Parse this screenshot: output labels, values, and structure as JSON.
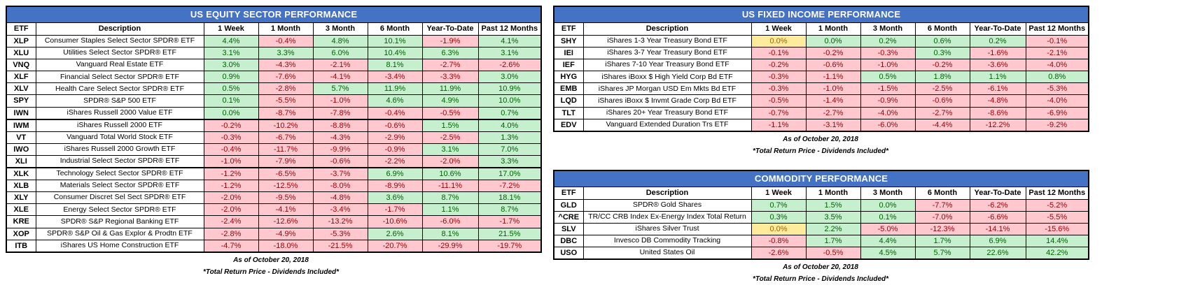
{
  "footnotes": {
    "as_of": "As of October 20, 2018",
    "note": "*Total Return Price - Dividends Included*"
  },
  "colors": {
    "header_bg": "#4472C4",
    "header_text": "#FFFFFF",
    "positive_bg": "#C6EFCE",
    "positive_text": "#006100",
    "negative_bg": "#FFC7CE",
    "negative_text": "#9C0006",
    "zero_bg": "#FFEB9C",
    "zero_text": "#9C6500"
  },
  "chart_data": [
    {
      "type": "table",
      "id": "equity",
      "title": "US EQUITY SECTOR PERFORMANCE",
      "columns": [
        "ETF",
        "Description",
        "1 Week",
        "1 Month",
        "3 Month",
        "6 Month",
        "Year-To-Date",
        "Past 12 Months"
      ],
      "rows": [
        {
          "etf": "XLP",
          "description": "Consumer Staples Select Sector SPDR® ETF",
          "values": [
            "4.4%",
            "-0.4%",
            "4.8%",
            "10.1%",
            "-1.9%",
            "4.1%"
          ],
          "tones": [
            "pos",
            "neg",
            "pos",
            "pos",
            "neg",
            "pos"
          ]
        },
        {
          "etf": "XLU",
          "description": "Utilities Select Sector SPDR® ETF",
          "values": [
            "3.1%",
            "3.3%",
            "6.0%",
            "10.4%",
            "6.3%",
            "3.1%"
          ],
          "tones": [
            "pos",
            "pos",
            "pos",
            "pos",
            "pos",
            "pos"
          ]
        },
        {
          "etf": "VNQ",
          "description": "Vanguard Real Estate ETF",
          "values": [
            "3.0%",
            "-4.3%",
            "-2.1%",
            "8.1%",
            "-2.7%",
            "-2.6%"
          ],
          "tones": [
            "pos",
            "neg",
            "neg",
            "pos",
            "neg",
            "neg"
          ]
        },
        {
          "etf": "XLF",
          "description": "Financial Select Sector SPDR® ETF",
          "values": [
            "0.9%",
            "-7.6%",
            "-4.1%",
            "-3.4%",
            "-3.3%",
            "3.0%"
          ],
          "tones": [
            "pos",
            "neg",
            "neg",
            "neg",
            "neg",
            "pos"
          ]
        },
        {
          "etf": "XLV",
          "description": "Health Care Select Sector SPDR® ETF",
          "values": [
            "0.5%",
            "-2.8%",
            "5.7%",
            "11.9%",
            "11.9%",
            "10.9%"
          ],
          "tones": [
            "pos",
            "neg",
            "pos",
            "pos",
            "pos",
            "pos"
          ]
        },
        {
          "etf": "SPY",
          "description": "SPDR® S&P 500 ETF",
          "values": [
            "0.1%",
            "-5.5%",
            "-1.0%",
            "4.6%",
            "4.9%",
            "10.0%"
          ],
          "tones": [
            "pos",
            "neg",
            "neg",
            "pos",
            "pos",
            "pos"
          ]
        },
        {
          "etf": "IWN",
          "description": "iShares Russell 2000 Value ETF",
          "values": [
            "0.0%",
            "-8.7%",
            "-7.8%",
            "-0.4%",
            "-0.5%",
            "0.7%"
          ],
          "tones": [
            "pos",
            "neg",
            "neg",
            "neg",
            "neg",
            "pos"
          ]
        },
        {
          "etf": "IWM",
          "description": "iShares Russell 2000 ETF",
          "values": [
            "-0.2%",
            "-10.2%",
            "-8.8%",
            "-0.6%",
            "1.5%",
            "4.0%"
          ],
          "tones": [
            "neg",
            "neg",
            "neg",
            "neg",
            "pos",
            "pos"
          ]
        },
        {
          "etf": "VT",
          "description": "Vanguard Total World Stock ETF",
          "values": [
            "-0.3%",
            "-6.7%",
            "-4.3%",
            "-2.9%",
            "-2.5%",
            "1.3%"
          ],
          "tones": [
            "neg",
            "neg",
            "neg",
            "neg",
            "neg",
            "pos"
          ]
        },
        {
          "etf": "IWO",
          "description": "iShares Russell 2000 Growth ETF",
          "values": [
            "-0.4%",
            "-11.7%",
            "-9.9%",
            "-0.9%",
            "3.1%",
            "7.0%"
          ],
          "tones": [
            "neg",
            "neg",
            "neg",
            "neg",
            "pos",
            "pos"
          ]
        },
        {
          "etf": "XLI",
          "description": "Industrial Select Sector SPDR® ETF",
          "values": [
            "-1.0%",
            "-7.9%",
            "-0.6%",
            "-2.2%",
            "-2.0%",
            "3.3%"
          ],
          "tones": [
            "neg",
            "neg",
            "neg",
            "neg",
            "neg",
            "pos"
          ]
        },
        {
          "etf": "XLK",
          "description": "Technology Select Sector SPDR® ETF",
          "values": [
            "-1.2%",
            "-6.5%",
            "-3.7%",
            "6.9%",
            "10.6%",
            "17.0%"
          ],
          "tones": [
            "neg",
            "neg",
            "neg",
            "pos",
            "pos",
            "pos"
          ]
        },
        {
          "etf": "XLB",
          "description": "Materials Select Sector SPDR® ETF",
          "values": [
            "-1.2%",
            "-12.5%",
            "-8.0%",
            "-8.9%",
            "-11.1%",
            "-7.2%"
          ],
          "tones": [
            "neg",
            "neg",
            "neg",
            "neg",
            "neg",
            "neg"
          ]
        },
        {
          "etf": "XLY",
          "description": "Consumer Discret Sel Sect SPDR® ETF",
          "values": [
            "-2.0%",
            "-9.5%",
            "-4.8%",
            "3.6%",
            "8.7%",
            "18.1%"
          ],
          "tones": [
            "neg",
            "neg",
            "neg",
            "pos",
            "pos",
            "pos"
          ]
        },
        {
          "etf": "XLE",
          "description": "Energy Select Sector SPDR® ETF",
          "values": [
            "-2.0%",
            "-4.1%",
            "-3.4%",
            "-1.7%",
            "1.1%",
            "8.7%"
          ],
          "tones": [
            "neg",
            "neg",
            "neg",
            "neg",
            "pos",
            "pos"
          ]
        },
        {
          "etf": "KRE",
          "description": "SPDR® S&P Regional Banking ETF",
          "values": [
            "-2.4%",
            "-12.6%",
            "-13.2%",
            "-10.6%",
            "-6.0%",
            "-1.7%"
          ],
          "tones": [
            "neg",
            "neg",
            "neg",
            "neg",
            "neg",
            "neg"
          ]
        },
        {
          "etf": "XOP",
          "description": "SPDR® S&P Oil & Gas Explor & Prodtn ETF",
          "values": [
            "-2.8%",
            "-4.9%",
            "-5.3%",
            "2.6%",
            "8.1%",
            "21.5%"
          ],
          "tones": [
            "neg",
            "neg",
            "neg",
            "pos",
            "pos",
            "pos"
          ]
        },
        {
          "etf": "ITB",
          "description": "iShares US Home Construction ETF",
          "values": [
            "-4.7%",
            "-18.0%",
            "-21.5%",
            "-20.7%",
            "-29.9%",
            "-19.7%"
          ],
          "tones": [
            "neg",
            "neg",
            "neg",
            "neg",
            "neg",
            "neg"
          ]
        }
      ]
    },
    {
      "type": "table",
      "id": "fixed-income",
      "title": "US FIXED INCOME PERFORMANCE",
      "columns": [
        "ETF",
        "Description",
        "1 Week",
        "1 Month",
        "3 Month",
        "6 Month",
        "Year-To-Date",
        "Past 12 Months"
      ],
      "rows": [
        {
          "etf": "SHY",
          "description": "iShares 1-3 Year Treasury Bond ETF",
          "values": [
            "0.0%",
            "0.0%",
            "0.2%",
            "0.6%",
            "0.2%",
            "-0.1%"
          ],
          "tones": [
            "zero",
            "pos",
            "pos",
            "pos",
            "pos",
            "neg"
          ]
        },
        {
          "etf": "IEI",
          "description": "iShares 3-7 Year Treasury Bond ETF",
          "values": [
            "-0.1%",
            "-0.2%",
            "-0.3%",
            "0.3%",
            "-1.6%",
            "-2.1%"
          ],
          "tones": [
            "neg",
            "neg",
            "neg",
            "pos",
            "neg",
            "neg"
          ]
        },
        {
          "etf": "IEF",
          "description": "iShares 7-10 Year Treasury Bond ETF",
          "values": [
            "-0.2%",
            "-0.6%",
            "-1.0%",
            "-0.2%",
            "-3.6%",
            "-4.0%"
          ],
          "tones": [
            "neg",
            "neg",
            "neg",
            "neg",
            "neg",
            "neg"
          ]
        },
        {
          "etf": "HYG",
          "description": "iShares iBoxx $ High Yield Corp Bd ETF",
          "values": [
            "-0.3%",
            "-1.1%",
            "0.5%",
            "1.8%",
            "1.1%",
            "0.8%"
          ],
          "tones": [
            "neg",
            "neg",
            "pos",
            "pos",
            "pos",
            "pos"
          ]
        },
        {
          "etf": "EMB",
          "description": "iShares JP Morgan USD Em Mkts Bd ETF",
          "values": [
            "-0.3%",
            "-1.0%",
            "-1.5%",
            "-2.5%",
            "-6.1%",
            "-5.3%"
          ],
          "tones": [
            "neg",
            "neg",
            "neg",
            "neg",
            "neg",
            "neg"
          ]
        },
        {
          "etf": "LQD",
          "description": "iShares iBoxx $ Invmt Grade Corp Bd ETF",
          "values": [
            "-0.5%",
            "-1.4%",
            "-0.9%",
            "-0.6%",
            "-4.8%",
            "-4.0%"
          ],
          "tones": [
            "neg",
            "neg",
            "neg",
            "neg",
            "neg",
            "neg"
          ]
        },
        {
          "etf": "TLT",
          "description": "iShares 20+ Year Treasury Bond ETF",
          "values": [
            "-0.7%",
            "-2.7%",
            "-4.0%",
            "-2.7%",
            "-8.6%",
            "-6.9%"
          ],
          "tones": [
            "neg",
            "neg",
            "neg",
            "neg",
            "neg",
            "neg"
          ]
        },
        {
          "etf": "EDV",
          "description": "Vanguard Extended Duration Trs ETF",
          "values": [
            "-1.1%",
            "-3.1%",
            "-6.0%",
            "-4.4%",
            "-12.2%",
            "-9.2%"
          ],
          "tones": [
            "neg",
            "neg",
            "neg",
            "neg",
            "neg",
            "neg"
          ]
        }
      ]
    },
    {
      "type": "table",
      "id": "commodity",
      "title": "COMMODITY PERFORMANCE",
      "columns": [
        "ETF",
        "Description",
        "1 Week",
        "1 Month",
        "3 Month",
        "6 Month",
        "Year-To-Date",
        "Past 12 Months"
      ],
      "rows": [
        {
          "etf": "GLD",
          "description": "SPDR® Gold Shares",
          "values": [
            "0.7%",
            "1.5%",
            "0.0%",
            "-7.7%",
            "-6.2%",
            "-5.2%"
          ],
          "tones": [
            "pos",
            "pos",
            "pos",
            "neg",
            "neg",
            "neg"
          ]
        },
        {
          "etf": "^CRE",
          "description": "TR/CC CRB Index Ex-Energy Index Total Return",
          "values": [
            "0.3%",
            "3.5%",
            "0.1%",
            "-7.0%",
            "-6.6%",
            "-5.5%"
          ],
          "tones": [
            "pos",
            "pos",
            "pos",
            "neg",
            "neg",
            "neg"
          ]
        },
        {
          "etf": "SLV",
          "description": "iShares Silver Trust",
          "values": [
            "0.0%",
            "2.2%",
            "-5.0%",
            "-12.3%",
            "-14.1%",
            "-15.6%"
          ],
          "tones": [
            "zero",
            "pos",
            "neg",
            "neg",
            "neg",
            "neg"
          ]
        },
        {
          "etf": "DBC",
          "description": "Invesco DB Commodity Tracking",
          "values": [
            "-0.8%",
            "1.7%",
            "4.4%",
            "1.7%",
            "6.9%",
            "14.4%"
          ],
          "tones": [
            "neg",
            "pos",
            "pos",
            "pos",
            "pos",
            "pos"
          ]
        },
        {
          "etf": "USO",
          "description": "United States Oil",
          "values": [
            "-2.6%",
            "-0.5%",
            "4.5%",
            "5.7%",
            "22.6%",
            "42.2%"
          ],
          "tones": [
            "neg",
            "neg",
            "pos",
            "pos",
            "pos",
            "pos"
          ]
        }
      ]
    }
  ]
}
